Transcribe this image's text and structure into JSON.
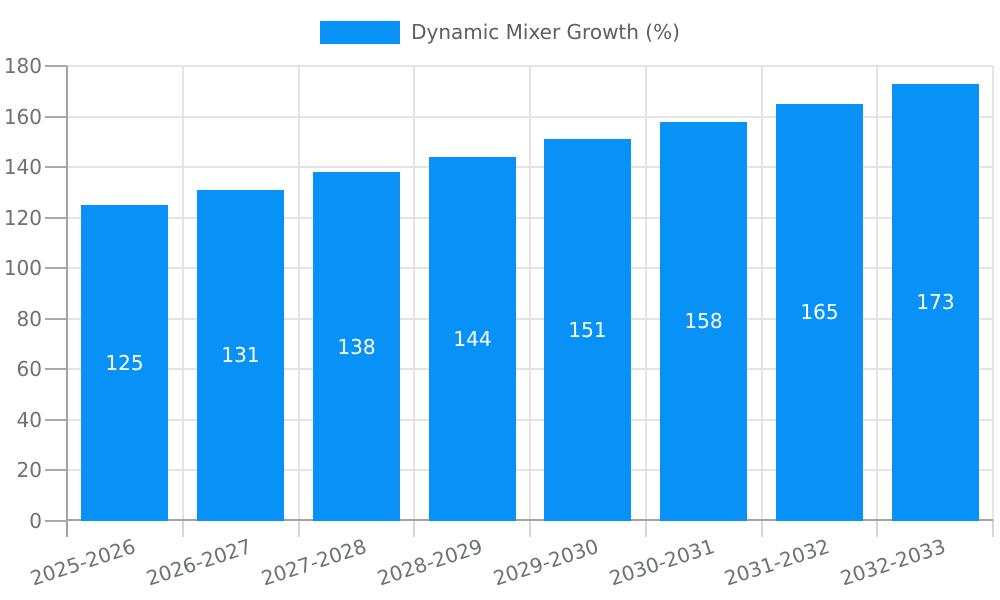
{
  "legend": {
    "label": "Dynamic Mixer Growth (%)",
    "position": "top-center"
  },
  "colors": {
    "bar": "#0892f8",
    "bar_label": "#ffffff",
    "axis_line": "#a3a3a3",
    "y_tick": "#a9a9a9",
    "x_tick": "#d6d6d6",
    "grid_line": "#e4e4e4",
    "axis_label": "#6e7079",
    "legend_label": "#5c6066",
    "background": "#ffffff"
  },
  "chart_data": {
    "type": "bar",
    "title": "Dynamic Mixer Growth (%)",
    "categories": [
      "2025-2026",
      "2026-2027",
      "2027-2028",
      "2028-2029",
      "2029-2030",
      "2030-2031",
      "2031-2032",
      "2032-2033"
    ],
    "series": [
      {
        "name": "Dynamic Mixer Growth (%)",
        "values": [
          125,
          131,
          138,
          144,
          151,
          158,
          165,
          173
        ]
      }
    ],
    "xlabel": "",
    "ylabel": "",
    "ylim": [
      0,
      180
    ],
    "yticks": [
      0,
      20,
      40,
      60,
      80,
      100,
      120,
      140,
      160,
      180
    ],
    "grid": true,
    "legend_position": "top",
    "value_labels": "inside-center",
    "x_label_rotation_deg": -18
  }
}
